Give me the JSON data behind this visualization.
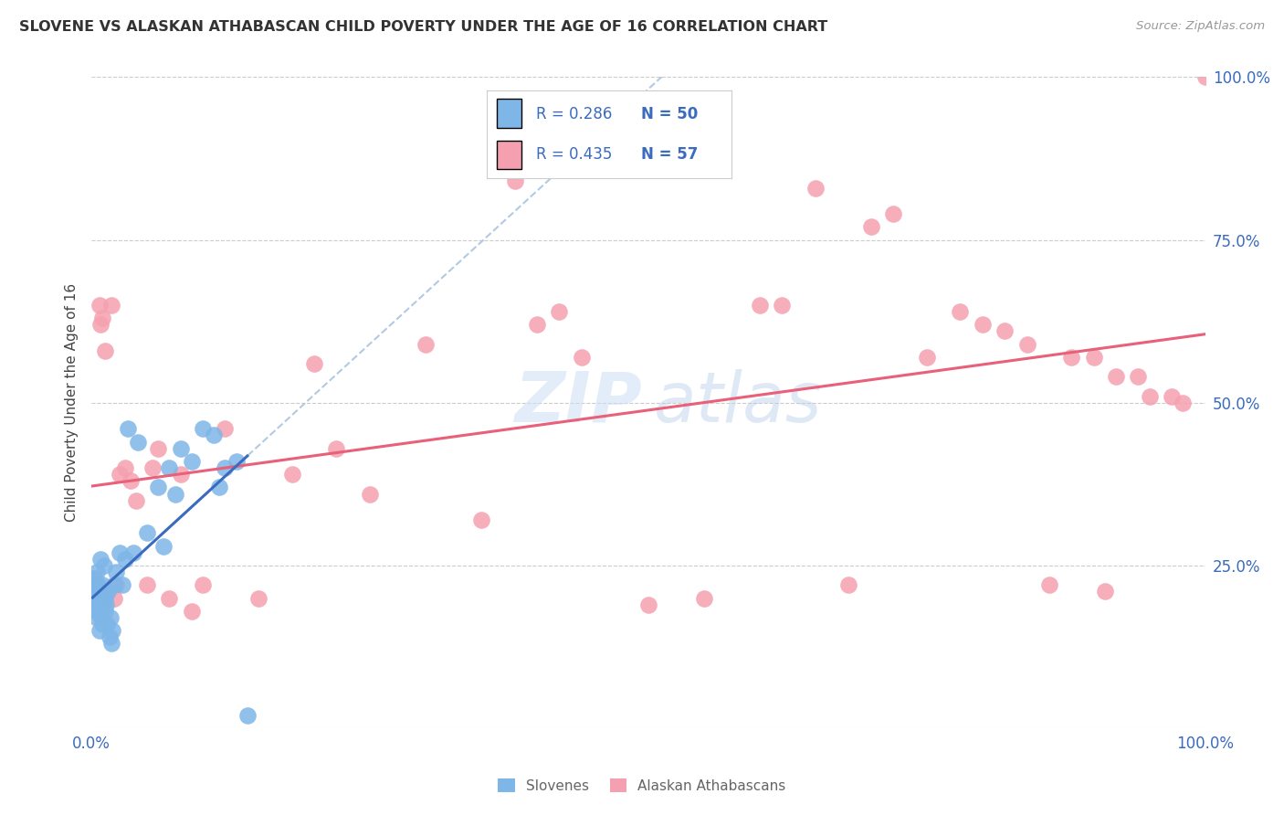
{
  "title": "SLOVENE VS ALASKAN ATHABASCAN CHILD POVERTY UNDER THE AGE OF 16 CORRELATION CHART",
  "source": "Source: ZipAtlas.com",
  "ylabel": "Child Poverty Under the Age of 16",
  "background_color": "#ffffff",
  "watermark_zip": "ZIP",
  "watermark_atlas": "atlas",
  "grid_color": "#cccccc",
  "slovene_color": "#7eb6e8",
  "athabascan_color": "#f5a0b0",
  "slovene_line_color": "#3a6bbf",
  "athabascan_line_color": "#e8607a",
  "dashed_line_color": "#aac4e0",
  "tick_label_color": "#3a6bbf",
  "title_color": "#333333",
  "source_color": "#999999",
  "ylabel_color": "#444444",
  "bottom_label_color": "#666666",
  "slovene_points": [
    [
      0.001,
      0.2
    ],
    [
      0.002,
      0.21
    ],
    [
      0.002,
      0.23
    ],
    [
      0.003,
      0.19
    ],
    [
      0.003,
      0.22
    ],
    [
      0.004,
      0.18
    ],
    [
      0.004,
      0.2
    ],
    [
      0.005,
      0.17
    ],
    [
      0.005,
      0.24
    ],
    [
      0.006,
      0.19
    ],
    [
      0.006,
      0.22
    ],
    [
      0.007,
      0.21
    ],
    [
      0.007,
      0.15
    ],
    [
      0.008,
      0.18
    ],
    [
      0.008,
      0.26
    ],
    [
      0.009,
      0.2
    ],
    [
      0.009,
      0.17
    ],
    [
      0.01,
      0.22
    ],
    [
      0.01,
      0.16
    ],
    [
      0.011,
      0.25
    ],
    [
      0.012,
      0.2
    ],
    [
      0.012,
      0.18
    ],
    [
      0.013,
      0.19
    ],
    [
      0.014,
      0.16
    ],
    [
      0.015,
      0.21
    ],
    [
      0.016,
      0.14
    ],
    [
      0.017,
      0.17
    ],
    [
      0.018,
      0.13
    ],
    [
      0.019,
      0.15
    ],
    [
      0.02,
      0.22
    ],
    [
      0.022,
      0.24
    ],
    [
      0.025,
      0.27
    ],
    [
      0.028,
      0.22
    ],
    [
      0.03,
      0.26
    ],
    [
      0.033,
      0.46
    ],
    [
      0.038,
      0.27
    ],
    [
      0.042,
      0.44
    ],
    [
      0.05,
      0.3
    ],
    [
      0.06,
      0.37
    ],
    [
      0.065,
      0.28
    ],
    [
      0.07,
      0.4
    ],
    [
      0.075,
      0.36
    ],
    [
      0.08,
      0.43
    ],
    [
      0.09,
      0.41
    ],
    [
      0.1,
      0.46
    ],
    [
      0.11,
      0.45
    ],
    [
      0.115,
      0.37
    ],
    [
      0.12,
      0.4
    ],
    [
      0.13,
      0.41
    ],
    [
      0.14,
      0.02
    ]
  ],
  "athabascan_points": [
    [
      0.003,
      0.23
    ],
    [
      0.005,
      0.22
    ],
    [
      0.007,
      0.65
    ],
    [
      0.008,
      0.62
    ],
    [
      0.01,
      0.2
    ],
    [
      0.01,
      0.63
    ],
    [
      0.012,
      0.58
    ],
    [
      0.015,
      0.21
    ],
    [
      0.018,
      0.65
    ],
    [
      0.02,
      0.2
    ],
    [
      0.022,
      0.22
    ],
    [
      0.025,
      0.39
    ],
    [
      0.03,
      0.4
    ],
    [
      0.035,
      0.38
    ],
    [
      0.04,
      0.35
    ],
    [
      0.05,
      0.22
    ],
    [
      0.055,
      0.4
    ],
    [
      0.06,
      0.43
    ],
    [
      0.07,
      0.2
    ],
    [
      0.08,
      0.39
    ],
    [
      0.09,
      0.18
    ],
    [
      0.1,
      0.22
    ],
    [
      0.12,
      0.46
    ],
    [
      0.15,
      0.2
    ],
    [
      0.18,
      0.39
    ],
    [
      0.2,
      0.56
    ],
    [
      0.22,
      0.43
    ],
    [
      0.25,
      0.36
    ],
    [
      0.3,
      0.59
    ],
    [
      0.35,
      0.32
    ],
    [
      0.38,
      0.84
    ],
    [
      0.4,
      0.62
    ],
    [
      0.42,
      0.64
    ],
    [
      0.44,
      0.57
    ],
    [
      0.5,
      0.19
    ],
    [
      0.55,
      0.2
    ],
    [
      0.6,
      0.65
    ],
    [
      0.62,
      0.65
    ],
    [
      0.65,
      0.83
    ],
    [
      0.68,
      0.22
    ],
    [
      0.7,
      0.77
    ],
    [
      0.72,
      0.79
    ],
    [
      0.75,
      0.57
    ],
    [
      0.78,
      0.64
    ],
    [
      0.8,
      0.62
    ],
    [
      0.82,
      0.61
    ],
    [
      0.84,
      0.59
    ],
    [
      0.86,
      0.22
    ],
    [
      0.88,
      0.57
    ],
    [
      0.9,
      0.57
    ],
    [
      0.91,
      0.21
    ],
    [
      0.92,
      0.54
    ],
    [
      0.94,
      0.54
    ],
    [
      0.95,
      0.51
    ],
    [
      0.97,
      0.51
    ],
    [
      0.98,
      0.5
    ],
    [
      1.0,
      1.0
    ]
  ]
}
